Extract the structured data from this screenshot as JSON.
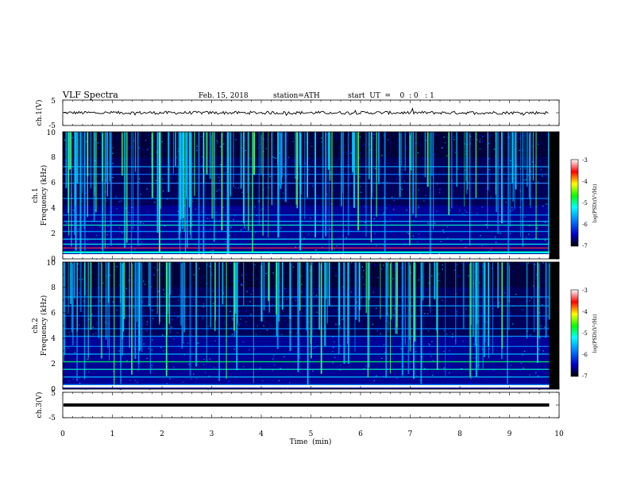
{
  "header": {
    "title": "VLF  Spectra",
    "date": "Feb. 15, 2018",
    "station": "station=ATH",
    "start_ut": "start  UT  =    0  : 0   : 1"
  },
  "chart_data": [
    {
      "type": "line",
      "name": "ch1-waveform",
      "ylabel": "ch.1(V)",
      "ylim": [
        -5,
        5
      ],
      "yticks": [
        "5",
        "-5"
      ],
      "xlim": [
        0,
        10
      ],
      "approx_level": 0,
      "noise_amplitude": 0.6
    },
    {
      "type": "heatmap",
      "name": "ch1-spectrogram",
      "ylabel": "ch.1\nFrequency  (kHz)",
      "ylabel_line1": "ch.1",
      "ylabel_line2": "Frequency  (kHz)",
      "ylim": [
        0,
        10
      ],
      "yticks": [
        "0",
        "2",
        "4",
        "6",
        "8",
        "10"
      ],
      "xlim": [
        0,
        10
      ],
      "colorbar": {
        "label": "log(PSD)(V²/Hz)",
        "range": [
          -7,
          -3
        ],
        "ticks": [
          "-3",
          "-4",
          "-5",
          "-6",
          "-7"
        ],
        "colors": [
          "#000000",
          "#0000cc",
          "#0080ff",
          "#00ffff",
          "#00ff00",
          "#ffff00",
          "#ff0000",
          "#ffffff"
        ]
      }
    },
    {
      "type": "heatmap",
      "name": "ch2-spectrogram",
      "ylabel": "ch.2\nFrequency  (kHz)",
      "ylabel_line1": "ch.2",
      "ylabel_line2": "Frequency  (kHz)",
      "ylim": [
        0,
        10
      ],
      "yticks": [
        "0",
        "2",
        "4",
        "6",
        "8",
        "10"
      ],
      "xlim": [
        0,
        10
      ],
      "colorbar": {
        "label": "log(PSD)(V²/Hz)",
        "range": [
          -7,
          -3
        ],
        "ticks": [
          "-3",
          "-4",
          "-5",
          "-6",
          "-7"
        ],
        "colors": [
          "#000000",
          "#0000cc",
          "#0080ff",
          "#00ffff",
          "#00ff00",
          "#ffff00",
          "#ff0000",
          "#ffffff"
        ]
      }
    },
    {
      "type": "line",
      "name": "ch3-waveform",
      "ylabel": "ch.3(V)",
      "ylim": [
        -5,
        5
      ],
      "yticks": [
        "5",
        "-5"
      ],
      "xlim": [
        0,
        10
      ],
      "approx_level": 0,
      "noise_amplitude": 0
    }
  ],
  "xaxis": {
    "label": "Time  (min)",
    "range": [
      0,
      10
    ],
    "ticks": [
      "0",
      "1",
      "2",
      "3",
      "4",
      "5",
      "6",
      "7",
      "8",
      "9",
      "10"
    ],
    "data_end": 9.8
  }
}
